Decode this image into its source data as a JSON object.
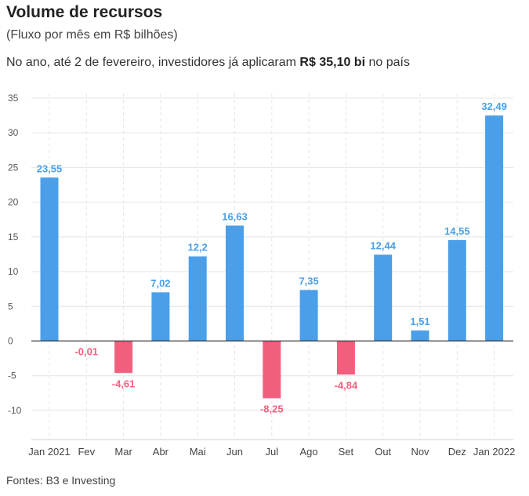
{
  "header": {
    "title": "Volume de recursos",
    "subtitle": "(Fluxo por mês em R$ bilhões)",
    "note_prefix": "No ano, até 2 de fevereiro, investidores já aplicaram ",
    "note_bold": "R$ 35,10 bi",
    "note_suffix": " no país"
  },
  "footer": {
    "source": "Fontes: B3 e Investing"
  },
  "colors": {
    "positive": "#4a9fe8",
    "negative": "#f0607e",
    "grid": "#e4e4e4",
    "axis_text": "#555555"
  },
  "chart_data": {
    "type": "bar",
    "categories": [
      "Jan 2021",
      "Fev",
      "Mar",
      "Abr",
      "Mai",
      "Jun",
      "Jul",
      "Ago",
      "Set",
      "Out",
      "Nov",
      "Dez",
      "Jan 2022"
    ],
    "values": [
      23.55,
      -0.01,
      -4.61,
      7.02,
      12.2,
      16.63,
      -8.25,
      7.35,
      -4.84,
      12.44,
      1.51,
      14.55,
      32.49
    ],
    "data_labels": [
      "23,55",
      "-0,01",
      "-4,61",
      "7,02",
      "12,2",
      "16,63",
      "-8,25",
      "7,35",
      "-4,84",
      "12,44",
      "1,51",
      "14,55",
      "32,49"
    ],
    "yticks": [
      35,
      30,
      25,
      20,
      15,
      10,
      5,
      0,
      -5,
      -10
    ],
    "ylim": [
      -14,
      35
    ],
    "grid": true
  }
}
